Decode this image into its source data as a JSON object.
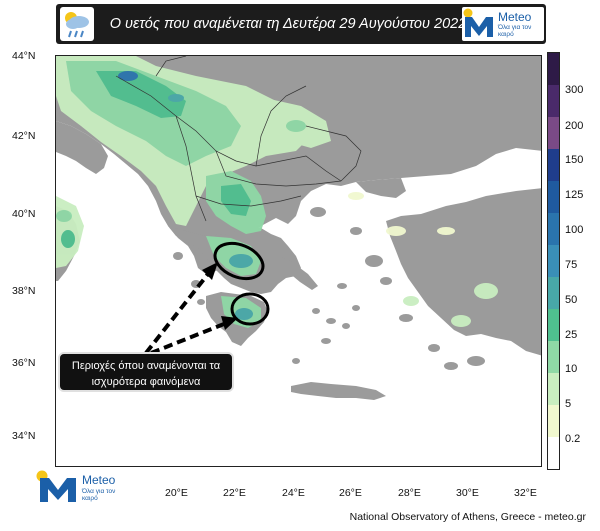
{
  "header": {
    "title": "Ο υετός που αναμένεται τη Δευτέρα 29 Αυγούστου 2022",
    "weather_icon": "cloud-rain-sun-icon"
  },
  "logo_top": {
    "name": "Meteo",
    "tagline": "Όλα για τον καιρό"
  },
  "logo_bottom": {
    "name": "Meteo",
    "tagline": "Όλα για τον καιρό"
  },
  "map": {
    "lat_labels": [
      "44°N",
      "42°N",
      "40°N",
      "38°N",
      "36°N",
      "34°N"
    ],
    "lon_labels": [
      "20°E",
      "22°E",
      "24°E",
      "26°E",
      "28°E",
      "30°E",
      "32°E"
    ],
    "sea_color": "#ffffff",
    "land_color": "#9b9b9b"
  },
  "colorbar": {
    "labels": [
      "300",
      "200",
      "150",
      "125",
      "100",
      "75",
      "50",
      "25",
      "10",
      "5",
      "0.2"
    ],
    "colors": [
      "#2e1a47",
      "#4a2a6a",
      "#7a4a86",
      "#1f3d8c",
      "#1f5a9f",
      "#2a74ad",
      "#3a8fb8",
      "#48a8a8",
      "#4fbf8f",
      "#8fd9a6",
      "#c9eec0",
      "#f1f8cf",
      "#ffffff"
    ]
  },
  "callout": {
    "line1": "Περιοχές όπου αναμένονται τα",
    "line2": "ισχυρότερα φαινόμενα"
  },
  "footer": "National Observatory of Athens, Greece - meteo.gr"
}
